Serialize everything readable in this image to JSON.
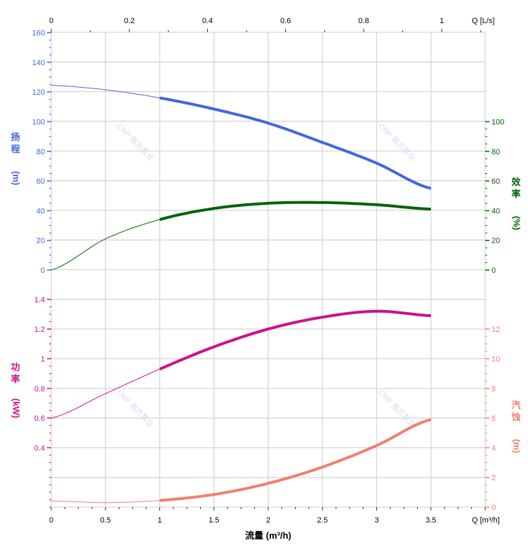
{
  "chart_data": {
    "type": "line",
    "title": "",
    "xlabel": "流量 (m³/h)",
    "x_unit_label": "Q [m³/h]",
    "xlim": [
      0,
      4
    ],
    "x_ticks": [
      "0",
      "0.5",
      "1",
      "1.5",
      "2",
      "2.5",
      "3",
      "3.5"
    ],
    "x_tick_values": [
      0,
      0.5,
      1,
      1.5,
      2,
      2.5,
      3,
      3.5
    ],
    "top_axis": {
      "unit_label": "Q [L/s]",
      "ticks": [
        "0",
        "0.2",
        "0.4",
        "0.6",
        "0.8",
        "1"
      ],
      "tick_values": [
        0,
        0.2,
        0.4,
        0.6,
        0.8,
        1
      ]
    },
    "grid": true,
    "axes": {
      "head": {
        "label_chars": [
          "扬",
          "程"
        ],
        "unit": "(m)",
        "color": "#4466dd",
        "ylim": [
          0,
          160
        ],
        "ticks": [
          0,
          20,
          40,
          60,
          80,
          100,
          120,
          140,
          160
        ]
      },
      "efficiency": {
        "label_chars": [
          "效",
          "率"
        ],
        "unit": "(%)",
        "color": "#006400",
        "ylim": [
          0,
          100
        ],
        "ticks": [
          0,
          20,
          40,
          60,
          80,
          100
        ]
      },
      "power": {
        "label_chars": [
          "功",
          "率"
        ],
        "unit": "(kW)",
        "color": "#cc1188",
        "ylim": [
          0,
          1.4
        ],
        "ticks": [
          0.4,
          0.6,
          0.8,
          1,
          1.2,
          1.4
        ],
        "tick_labels": [
          "0.4",
          "0.6",
          "0.8",
          "1",
          "1.2",
          "1.4"
        ]
      },
      "npsh": {
        "label_chars": [
          "汽",
          "蚀"
        ],
        "unit": "(m)",
        "color": "#f08070",
        "ylim": [
          0,
          12
        ],
        "ticks": [
          0,
          2,
          4,
          6,
          8,
          10,
          12
        ]
      }
    },
    "series": [
      {
        "name": "head",
        "axis": "head",
        "color": "#4466dd",
        "x": [
          0,
          0.5,
          1,
          1.5,
          2,
          2.5,
          3,
          3.5
        ],
        "y": [
          124.5,
          121.5,
          116,
          108.5,
          99,
          86,
          72,
          55
        ],
        "operating_range": [
          1,
          3.5
        ]
      },
      {
        "name": "efficiency",
        "axis": "efficiency",
        "color": "#006400",
        "x": [
          0,
          0.5,
          1,
          1.5,
          2,
          2.5,
          3,
          3.5
        ],
        "y": [
          0,
          21,
          34,
          41.5,
          45,
          45.5,
          44,
          41
        ],
        "operating_range": [
          1,
          3.5
        ]
      },
      {
        "name": "power",
        "axis": "power",
        "color": "#cc1188",
        "x": [
          0,
          0.5,
          1,
          1.5,
          2,
          2.5,
          3,
          3.5
        ],
        "y": [
          0.6,
          0.765,
          0.93,
          1.08,
          1.2,
          1.28,
          1.32,
          1.29
        ],
        "operating_range": [
          1,
          3.5
        ]
      },
      {
        "name": "npsh",
        "axis": "npsh",
        "color": "#f08070",
        "x": [
          0,
          0.5,
          1,
          1.5,
          2,
          2.5,
          3,
          3.5
        ],
        "y": [
          0.42,
          0.3,
          0.45,
          0.85,
          1.6,
          2.7,
          4.15,
          5.9
        ],
        "operating_range": [
          1,
          3.5
        ]
      }
    ],
    "watermark": "CNP 南方泵业"
  }
}
